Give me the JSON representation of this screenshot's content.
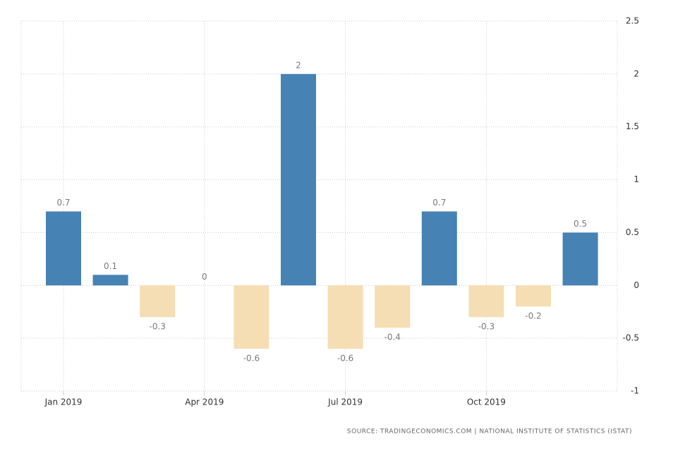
{
  "chart_data": {
    "type": "bar",
    "categories": [
      "Jan 2019",
      null,
      null,
      "Apr 2019",
      null,
      null,
      "Jul 2019",
      null,
      null,
      "Oct 2019",
      null,
      null
    ],
    "values": [
      0.7,
      0.1,
      -0.3,
      0,
      -0.6,
      2,
      -0.6,
      -0.4,
      0.7,
      -0.3,
      -0.2,
      0.5
    ],
    "positive_color": "#4682b4",
    "negative_color": "#f5deb3",
    "ylim": [
      -1,
      2.5
    ],
    "yticks": [
      -1,
      -0.5,
      0,
      0.5,
      1,
      1.5,
      2,
      2.5
    ],
    "grid": true,
    "source": "SOURCE: TRADINGECONOMICS.COM | NATIONAL INSTITUTE OF STATISTICS (ISTAT)"
  }
}
